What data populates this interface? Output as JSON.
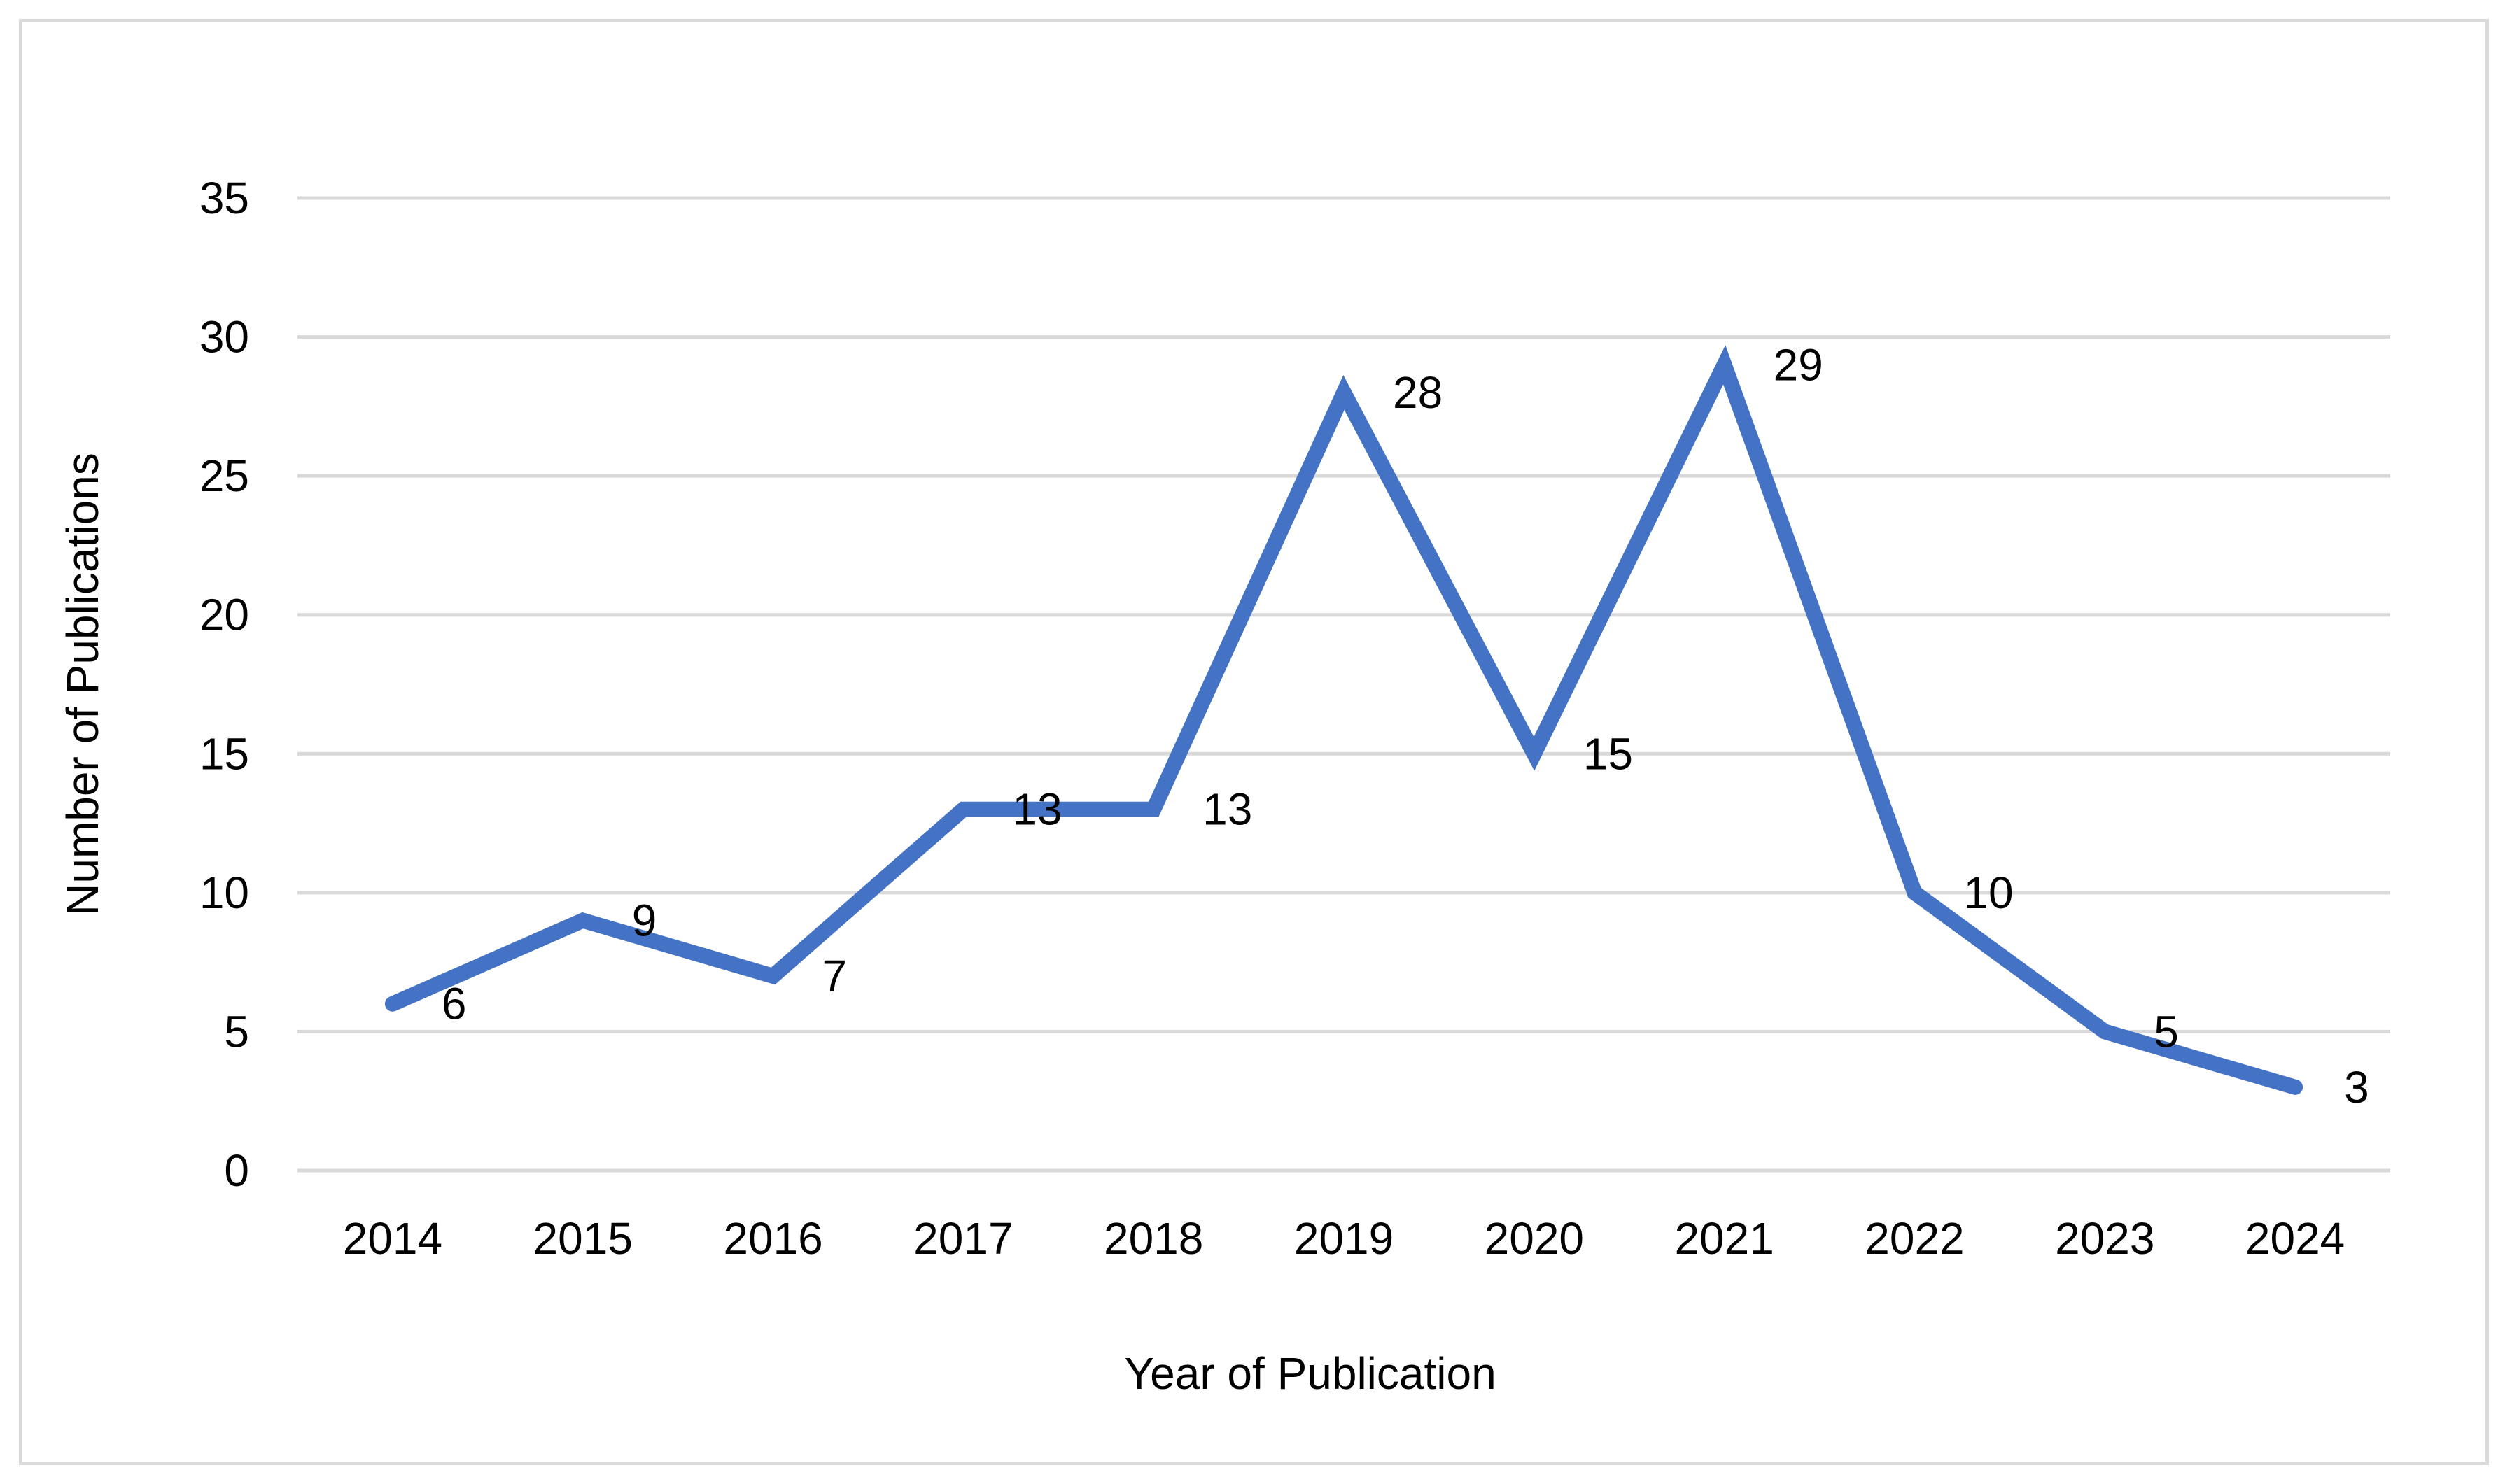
{
  "chart_data": {
    "type": "line",
    "title": "",
    "xlabel": "Year of Publication",
    "ylabel": "Number of Publications",
    "categories": [
      "2014",
      "2015",
      "2016",
      "2017",
      "2018",
      "2019",
      "2020",
      "2021",
      "2022",
      "2023",
      "2024"
    ],
    "series": [
      {
        "values": [
          6,
          9,
          7,
          13,
          13,
          28,
          15,
          29,
          10,
          5,
          3
        ]
      }
    ],
    "ylim": [
      0,
      35
    ],
    "yticks": [
      0,
      5,
      10,
      15,
      20,
      25,
      30,
      35
    ],
    "grid": true,
    "legend": "none",
    "data_labels": true,
    "colors": {
      "line": "#4472c4",
      "grid": "#d9d9d9",
      "frame": "#d9d9d9"
    }
  }
}
